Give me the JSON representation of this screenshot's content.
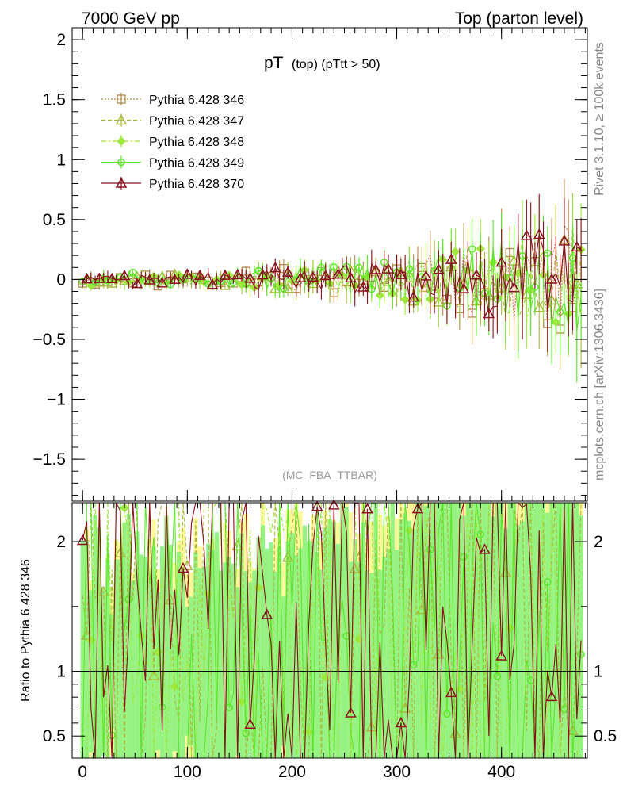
{
  "header": {
    "left": "7000 GeV pp",
    "right": "Top (parton level)"
  },
  "side_labels": {
    "rivet": "Rivet 3.1.10, ≥ 100k events",
    "mcplots": "mcplots.cern.ch [arXiv:1306.3436]"
  },
  "chart_data": [
    {
      "type": "scatter",
      "panel": "main",
      "title_main": "pT",
      "title_sub": "(top) (pTtt > 50)",
      "analysis": "(MC_FBA_TTBAR)",
      "xlim": [
        -10,
        482
      ],
      "ylim": [
        -1.85,
        2.1
      ],
      "yticks": [
        -1.5,
        -1,
        -0.5,
        0,
        0.5,
        1,
        1.5,
        2
      ],
      "ytick_labels": [
        "−1.5",
        "−1",
        "−0.5",
        "0",
        "0.5",
        "1",
        "1.5",
        "2"
      ],
      "legend_position": "top-left",
      "series": [
        {
          "name": "Pythia 6.428 346",
          "color": "#b5874a",
          "marker": "square",
          "dash": "2,2",
          "seed": 11
        },
        {
          "name": "Pythia 6.428 347",
          "color": "#a9b83c",
          "marker": "triangle",
          "dash": "5,3",
          "seed": 23
        },
        {
          "name": "Pythia 6.428 348",
          "color": "#9ee83c",
          "marker": "diamond",
          "dash": "6,3,2,3",
          "seed": 37
        },
        {
          "name": "Pythia 6.428 349",
          "color": "#5ce62a",
          "marker": "circle",
          "dash": "",
          "seed": 51
        },
        {
          "name": "Pythia 6.428 370",
          "color": "#8b0f1e",
          "marker": "triangle-open",
          "dash": "",
          "seed": 77
        }
      ]
    },
    {
      "type": "line",
      "panel": "ratio",
      "ylabel": "Ratio to Pythia 6.428 346",
      "xlim": [
        -10,
        482
      ],
      "ylim": [
        0.33,
        2.3
      ],
      "yticks": [
        0.5,
        1,
        2
      ],
      "ytick_labels": [
        "0.5",
        "1",
        "2"
      ],
      "xticks": [
        0,
        100,
        200,
        300,
        400
      ],
      "xtick_labels": [
        "0",
        "100",
        "200",
        "300",
        "400"
      ],
      "reference": 1
    }
  ]
}
